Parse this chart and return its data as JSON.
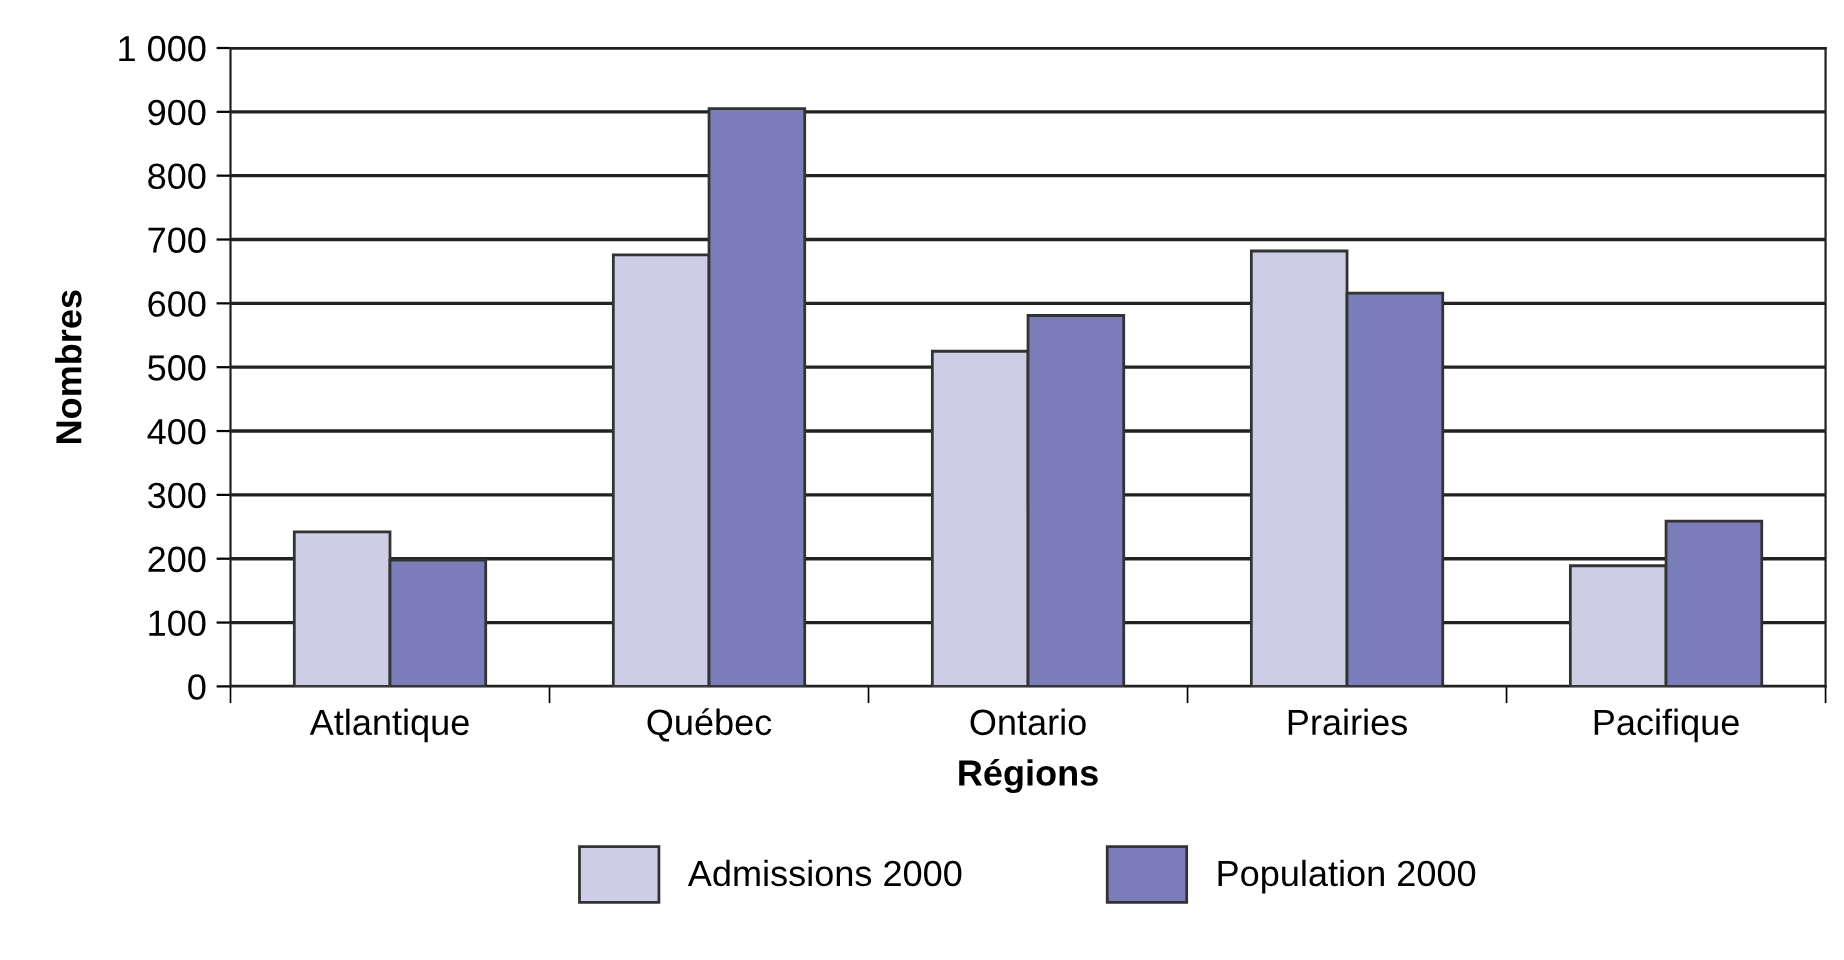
{
  "chart_data": {
    "type": "bar",
    "xlabel": "Régions",
    "ylabel": "Nombres",
    "categories": [
      "Atlantique",
      "Québec",
      "Ontario",
      "Prairies",
      "Pacifique"
    ],
    "series": [
      {
        "name": "Admissions 2000",
        "color": "#cdcde6",
        "values": [
          242,
          676,
          525,
          682,
          189
        ]
      },
      {
        "name": "Population 2000",
        "color": "#7a7db9",
        "values": [
          198,
          905,
          581,
          616,
          259
        ]
      }
    ],
    "ylim": [
      0,
      1000
    ],
    "yticks": [
      0,
      100,
      200,
      300,
      400,
      500,
      600,
      700,
      800,
      900,
      {
        "value": 1000,
        "label": "1 000"
      }
    ],
    "grid": "y",
    "legend": "bottom"
  }
}
